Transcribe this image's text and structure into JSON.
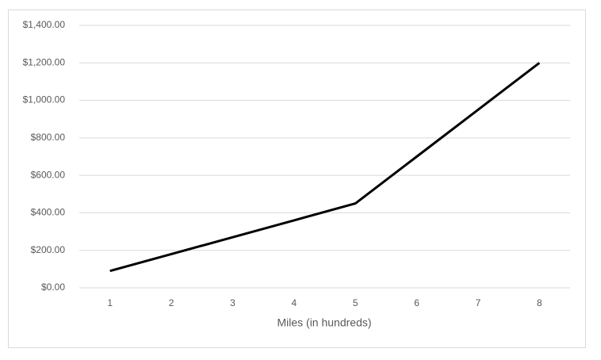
{
  "chart_data": {
    "type": "line",
    "x_label": "Miles (in hundreds)",
    "categories": [
      "1",
      "2",
      "3",
      "4",
      "5",
      "6",
      "7",
      "8"
    ],
    "values": [
      90,
      180,
      270,
      360,
      450,
      700,
      950,
      1200
    ],
    "color": "#000000",
    "ylim": [
      0,
      1400
    ],
    "yticks": [
      {
        "value": 0,
        "label": "$0.00"
      },
      {
        "value": 200,
        "label": "$200.00"
      },
      {
        "value": 400,
        "label": "$400.00"
      },
      {
        "value": 600,
        "label": "$600.00"
      },
      {
        "value": 800,
        "label": "$800.00"
      },
      {
        "value": 1000,
        "label": "$1,000.00"
      },
      {
        "value": 1200,
        "label": "$1,200.00"
      },
      {
        "value": 1400,
        "label": "$1,400.00"
      }
    ],
    "grid": true
  }
}
